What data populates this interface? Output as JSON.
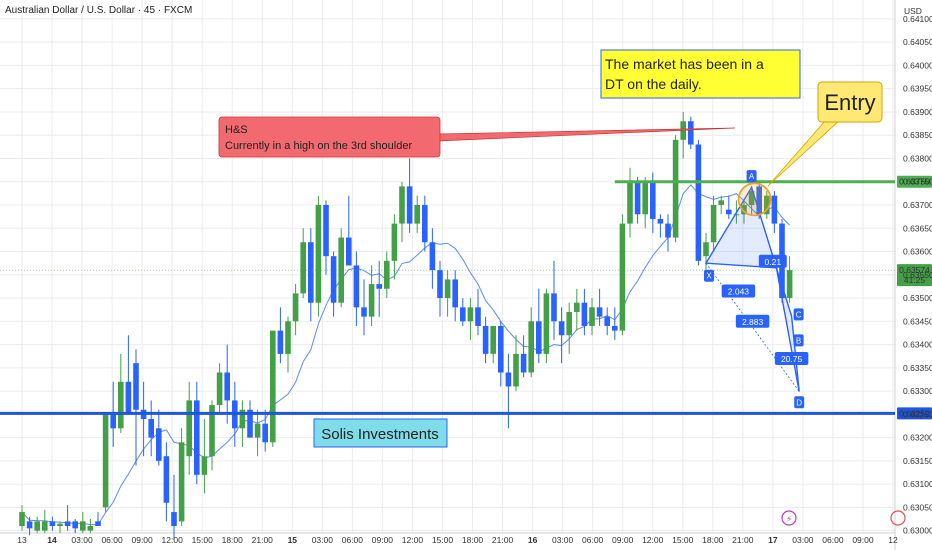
{
  "chart_data": {
    "type": "candlestick",
    "title": "Australian Dollar / U.S. Dollar · 45 · FXCM",
    "currency": "USD",
    "y_ticks": [
      0.641,
      0.6405,
      0.64,
      0.6395,
      0.639,
      0.6385,
      0.638,
      0.6375,
      0.637,
      0.6365,
      0.636,
      0.6355,
      0.635,
      0.6345,
      0.634,
      0.6335,
      0.633,
      0.6325,
      0.632,
      0.6315,
      0.631,
      0.6305,
      0.63
    ],
    "y_tick_labels": [
      "0.64100",
      "0.64050",
      "0.64000",
      "0.63950",
      "0.63900",
      "0.63850",
      "0.63800",
      "0.63750",
      "0.63700",
      "0.63650",
      "0.63600",
      "0.63550",
      "0.63500",
      "0.63450",
      "0.63400",
      "0.63350",
      "0.63300",
      "0.63250",
      "0.63200",
      "0.63150",
      "0.63100",
      "0.63050",
      "0.63000"
    ],
    "x_tick_labels": [
      "13",
      "14",
      "03:00",
      "06:00",
      "09:00",
      "12:00",
      "15:00",
      "18:00",
      "21:00",
      "15",
      "03:00",
      "06:00",
      "09:00",
      "12:00",
      "15:00",
      "18:00",
      "21:00",
      "16",
      "03:00",
      "06:00",
      "09:00",
      "12:00",
      "15:00",
      "18:00",
      "21:00",
      "17",
      "03:00",
      "06:00",
      "09:00",
      "12"
    ],
    "ylim": [
      0.62995,
      0.64132
    ],
    "colors": {
      "up": "#43a047",
      "down": "#2962ff",
      "ma": "#5b8def",
      "support": "#1e56e0",
      "resistance": "#4caf50"
    },
    "current_price": {
      "label": "0.63574",
      "countdown": "41:25"
    },
    "levels": [
      {
        "price": 0.6375,
        "label": "0.63750",
        "color": "#4caf50"
      },
      {
        "price": 0.63252,
        "label": "0.63252",
        "color": "#1e56e0"
      }
    ],
    "candles": [
      {
        "o": 0.6301,
        "h": 0.63055,
        "l": 0.63,
        "c": 0.6304
      },
      {
        "o": 0.6302,
        "h": 0.6303,
        "l": 0.6299,
        "c": 0.63005
      },
      {
        "o": 0.63,
        "h": 0.6303,
        "l": 0.62995,
        "c": 0.6302
      },
      {
        "o": 0.63,
        "h": 0.63045,
        "l": 0.62995,
        "c": 0.6302
      },
      {
        "o": 0.6302,
        "h": 0.6303,
        "l": 0.63,
        "c": 0.6301
      },
      {
        "o": 0.6301,
        "h": 0.6302,
        "l": 0.62995,
        "c": 0.63015
      },
      {
        "o": 0.6302,
        "h": 0.63055,
        "l": 0.63,
        "c": 0.6301
      },
      {
        "o": 0.6302,
        "h": 0.63025,
        "l": 0.62995,
        "c": 0.63005
      },
      {
        "o": 0.63,
        "h": 0.6304,
        "l": 0.62995,
        "c": 0.6302
      },
      {
        "o": 0.63,
        "h": 0.63025,
        "l": 0.62995,
        "c": 0.6301
      },
      {
        "o": 0.6302,
        "h": 0.6304,
        "l": 0.6301,
        "c": 0.6301
      },
      {
        "o": 0.6305,
        "h": 0.6325,
        "l": 0.6304,
        "c": 0.6325
      },
      {
        "o": 0.6325,
        "h": 0.6332,
        "l": 0.6318,
        "c": 0.6322
      },
      {
        "o": 0.6322,
        "h": 0.6338,
        "l": 0.6321,
        "c": 0.6332
      },
      {
        "o": 0.6332,
        "h": 0.6342,
        "l": 0.6325,
        "c": 0.6325
      },
      {
        "o": 0.6336,
        "h": 0.6339,
        "l": 0.6314,
        "c": 0.6326
      },
      {
        "o": 0.6326,
        "h": 0.6332,
        "l": 0.6316,
        "c": 0.6324
      },
      {
        "o": 0.6324,
        "h": 0.6328,
        "l": 0.6316,
        "c": 0.632
      },
      {
        "o": 0.6322,
        "h": 0.6326,
        "l": 0.6314,
        "c": 0.6315
      },
      {
        "o": 0.6316,
        "h": 0.6319,
        "l": 0.6302,
        "c": 0.6306
      },
      {
        "o": 0.6304,
        "h": 0.6312,
        "l": 0.6298,
        "c": 0.6301
      },
      {
        "o": 0.6302,
        "h": 0.6322,
        "l": 0.6301,
        "c": 0.6319
      },
      {
        "o": 0.6316,
        "h": 0.6332,
        "l": 0.6312,
        "c": 0.6328
      },
      {
        "o": 0.6328,
        "h": 0.6332,
        "l": 0.631,
        "c": 0.6312
      },
      {
        "o": 0.6312,
        "h": 0.6324,
        "l": 0.6308,
        "c": 0.6316
      },
      {
        "o": 0.6316,
        "h": 0.6328,
        "l": 0.6313,
        "c": 0.6327
      },
      {
        "o": 0.6327,
        "h": 0.6336,
        "l": 0.6325,
        "c": 0.6334
      },
      {
        "o": 0.6334,
        "h": 0.634,
        "l": 0.6323,
        "c": 0.6328
      },
      {
        "o": 0.6328,
        "h": 0.6332,
        "l": 0.6318,
        "c": 0.6322
      },
      {
        "o": 0.6322,
        "h": 0.6328,
        "l": 0.6318,
        "c": 0.6326
      },
      {
        "o": 0.6326,
        "h": 0.6328,
        "l": 0.632,
        "c": 0.632
      },
      {
        "o": 0.632,
        "h": 0.6326,
        "l": 0.6316,
        "c": 0.6323
      },
      {
        "o": 0.6323,
        "h": 0.6326,
        "l": 0.6317,
        "c": 0.6319
      },
      {
        "o": 0.6319,
        "h": 0.6343,
        "l": 0.6318,
        "c": 0.6343
      },
      {
        "o": 0.6343,
        "h": 0.6348,
        "l": 0.6336,
        "c": 0.6338
      },
      {
        "o": 0.6338,
        "h": 0.6346,
        "l": 0.6334,
        "c": 0.6345
      },
      {
        "o": 0.6345,
        "h": 0.6353,
        "l": 0.6342,
        "c": 0.6351
      },
      {
        "o": 0.6351,
        "h": 0.6365,
        "l": 0.635,
        "c": 0.6362
      },
      {
        "o": 0.6362,
        "h": 0.6365,
        "l": 0.6345,
        "c": 0.6349
      },
      {
        "o": 0.6349,
        "h": 0.6372,
        "l": 0.6346,
        "c": 0.637
      },
      {
        "o": 0.637,
        "h": 0.6371,
        "l": 0.6355,
        "c": 0.6359
      },
      {
        "o": 0.6359,
        "h": 0.636,
        "l": 0.6346,
        "c": 0.6349
      },
      {
        "o": 0.6349,
        "h": 0.6365,
        "l": 0.6348,
        "c": 0.6363
      },
      {
        "o": 0.6363,
        "h": 0.6372,
        "l": 0.6358,
        "c": 0.6357
      },
      {
        "o": 0.6357,
        "h": 0.636,
        "l": 0.6344,
        "c": 0.6348
      },
      {
        "o": 0.6348,
        "h": 0.6354,
        "l": 0.6342,
        "c": 0.6346
      },
      {
        "o": 0.6346,
        "h": 0.6357,
        "l": 0.6344,
        "c": 0.6353
      },
      {
        "o": 0.6353,
        "h": 0.6358,
        "l": 0.6346,
        "c": 0.6352
      },
      {
        "o": 0.6352,
        "h": 0.636,
        "l": 0.635,
        "c": 0.6358
      },
      {
        "o": 0.6358,
        "h": 0.6368,
        "l": 0.6354,
        "c": 0.6366
      },
      {
        "o": 0.6366,
        "h": 0.6375,
        "l": 0.6362,
        "c": 0.6374
      },
      {
        "o": 0.6374,
        "h": 0.638,
        "l": 0.6364,
        "c": 0.6366
      },
      {
        "o": 0.6366,
        "h": 0.6372,
        "l": 0.6364,
        "c": 0.637
      },
      {
        "o": 0.637,
        "h": 0.6372,
        "l": 0.636,
        "c": 0.6362
      },
      {
        "o": 0.6362,
        "h": 0.6365,
        "l": 0.6352,
        "c": 0.6356
      },
      {
        "o": 0.6356,
        "h": 0.6358,
        "l": 0.6346,
        "c": 0.635
      },
      {
        "o": 0.635,
        "h": 0.6356,
        "l": 0.6346,
        "c": 0.6354
      },
      {
        "o": 0.6354,
        "h": 0.6356,
        "l": 0.6345,
        "c": 0.6348
      },
      {
        "o": 0.6348,
        "h": 0.635,
        "l": 0.6344,
        "c": 0.6345
      },
      {
        "o": 0.6345,
        "h": 0.635,
        "l": 0.6341,
        "c": 0.6348
      },
      {
        "o": 0.6348,
        "h": 0.6352,
        "l": 0.6342,
        "c": 0.6344
      },
      {
        "o": 0.6344,
        "h": 0.6346,
        "l": 0.6336,
        "c": 0.6338
      },
      {
        "o": 0.6338,
        "h": 0.6344,
        "l": 0.6336,
        "c": 0.6344
      },
      {
        "o": 0.6344,
        "h": 0.6345,
        "l": 0.6331,
        "c": 0.6334
      },
      {
        "o": 0.6334,
        "h": 0.6338,
        "l": 0.6322,
        "c": 0.6331
      },
      {
        "o": 0.6331,
        "h": 0.6342,
        "l": 0.633,
        "c": 0.6338
      },
      {
        "o": 0.6338,
        "h": 0.6342,
        "l": 0.6333,
        "c": 0.6334
      },
      {
        "o": 0.6334,
        "h": 0.6348,
        "l": 0.6333,
        "c": 0.6345
      },
      {
        "o": 0.6345,
        "h": 0.6352,
        "l": 0.6336,
        "c": 0.6338
      },
      {
        "o": 0.6338,
        "h": 0.6352,
        "l": 0.6336,
        "c": 0.6351
      },
      {
        "o": 0.6351,
        "h": 0.6358,
        "l": 0.6341,
        "c": 0.6345
      },
      {
        "o": 0.6345,
        "h": 0.6348,
        "l": 0.6336,
        "c": 0.6342
      },
      {
        "o": 0.6342,
        "h": 0.6349,
        "l": 0.6338,
        "c": 0.6347
      },
      {
        "o": 0.6347,
        "h": 0.6352,
        "l": 0.6343,
        "c": 0.6349
      },
      {
        "o": 0.6349,
        "h": 0.6352,
        "l": 0.6342,
        "c": 0.6344
      },
      {
        "o": 0.6344,
        "h": 0.635,
        "l": 0.6342,
        "c": 0.6348
      },
      {
        "o": 0.6348,
        "h": 0.6352,
        "l": 0.6344,
        "c": 0.6346
      },
      {
        "o": 0.6346,
        "h": 0.6348,
        "l": 0.6342,
        "c": 0.6344
      },
      {
        "o": 0.6344,
        "h": 0.6348,
        "l": 0.6341,
        "c": 0.6343
      },
      {
        "o": 0.6343,
        "h": 0.6368,
        "l": 0.6342,
        "c": 0.6366
      },
      {
        "o": 0.6366,
        "h": 0.6378,
        "l": 0.6363,
        "c": 0.6375
      },
      {
        "o": 0.6375,
        "h": 0.6376,
        "l": 0.6366,
        "c": 0.6368
      },
      {
        "o": 0.6368,
        "h": 0.6376,
        "l": 0.6365,
        "c": 0.6375
      },
      {
        "o": 0.6375,
        "h": 0.6377,
        "l": 0.6364,
        "c": 0.6367
      },
      {
        "o": 0.6367,
        "h": 0.6368,
        "l": 0.6363,
        "c": 0.6366
      },
      {
        "o": 0.6366,
        "h": 0.6368,
        "l": 0.636,
        "c": 0.6363
      },
      {
        "o": 0.6363,
        "h": 0.6385,
        "l": 0.6362,
        "c": 0.6384
      },
      {
        "o": 0.6384,
        "h": 0.639,
        "l": 0.638,
        "c": 0.6388
      },
      {
        "o": 0.6388,
        "h": 0.6389,
        "l": 0.6382,
        "c": 0.6383
      },
      {
        "o": 0.6383,
        "h": 0.6384,
        "l": 0.6357,
        "c": 0.6358
      },
      {
        "o": 0.6359,
        "h": 0.6364,
        "l": 0.6355,
        "c": 0.6362
      },
      {
        "o": 0.6362,
        "h": 0.6372,
        "l": 0.636,
        "c": 0.637
      },
      {
        "o": 0.637,
        "h": 0.6372,
        "l": 0.6368,
        "c": 0.6371
      },
      {
        "o": 0.6369,
        "h": 0.6372,
        "l": 0.6367,
        "c": 0.6368
      },
      {
        "o": 0.6368,
        "h": 0.6371,
        "l": 0.6366,
        "c": 0.6368
      },
      {
        "o": 0.6368,
        "h": 0.6371,
        "l": 0.6366,
        "c": 0.637
      },
      {
        "o": 0.637,
        "h": 0.6374,
        "l": 0.6368,
        "c": 0.6373
      },
      {
        "o": 0.6374,
        "h": 0.6375,
        "l": 0.6367,
        "c": 0.6368
      },
      {
        "o": 0.6368,
        "h": 0.6373,
        "l": 0.6367,
        "c": 0.6372
      },
      {
        "o": 0.6372,
        "h": 0.6373,
        "l": 0.6364,
        "c": 0.6366
      },
      {
        "o": 0.6366,
        "h": 0.6367,
        "l": 0.6349,
        "c": 0.635
      },
      {
        "o": 0.635,
        "h": 0.6359,
        "l": 0.6349,
        "c": 0.6356
      }
    ],
    "annotations": {
      "hs_line1": "H&S",
      "hs_line2": "Currently in a high on the 3rd shoulder",
      "market_line1": "The market has been in a",
      "market_line2": "DT on the daily.",
      "entry": "Entry",
      "brand": "Solis Investments"
    },
    "pattern": {
      "labels": [
        {
          "text": "A",
          "price": 0.63738,
          "candle": 96
        },
        {
          "text": "X",
          "price": 0.63577,
          "candle": 90
        },
        {
          "text": "C",
          "price": 0.63461,
          "candle": 101
        },
        {
          "text": "B",
          "price": 0.63409,
          "candle": 101
        },
        {
          "text": "D",
          "price": 0.63276,
          "candle": 102
        }
      ],
      "ratios": [
        "0.21",
        "2.043",
        "2.883",
        "20.75"
      ]
    }
  }
}
